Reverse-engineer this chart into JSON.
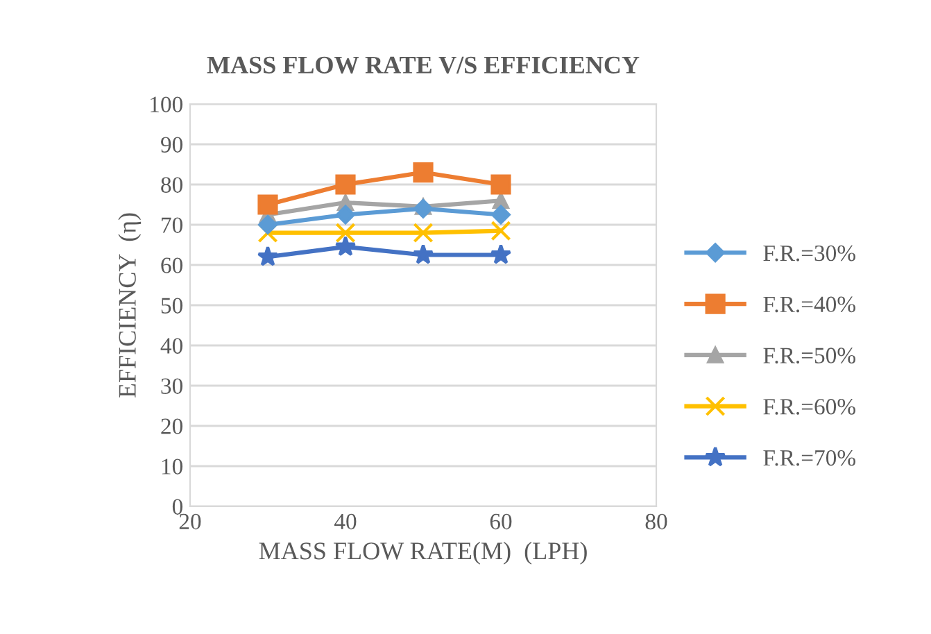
{
  "chart_data": {
    "type": "line",
    "title": "MASS FLOW RATE V/S EFFICIENCY",
    "xlabel": "MASS FLOW RATE(M)  (LPH)",
    "ylabel": "EFFICIENCY  (η)",
    "x": [
      30,
      40,
      50,
      60
    ],
    "series": [
      {
        "name": "F.R.=30%",
        "color": "#5b9bd5",
        "marker": "diamond",
        "values": [
          70,
          72.5,
          74,
          72.5
        ]
      },
      {
        "name": "F.R.=40%",
        "color": "#ed7d31",
        "marker": "square",
        "values": [
          75,
          80,
          83,
          80
        ]
      },
      {
        "name": "F.R.=50%",
        "color": "#a5a5a5",
        "marker": "triangle",
        "values": [
          72.5,
          75.5,
          74.5,
          76
        ]
      },
      {
        "name": "F.R.=60%",
        "color": "#ffc000",
        "marker": "cross",
        "values": [
          68,
          68,
          68,
          68.5
        ]
      },
      {
        "name": "F.R.=70%",
        "color": "#4472c4",
        "marker": "star",
        "values": [
          62,
          64.5,
          62.5,
          62.5
        ]
      }
    ],
    "xlim": [
      20,
      80
    ],
    "xticks": [
      20,
      40,
      60,
      80
    ],
    "ylim": [
      0,
      100
    ],
    "yticks": [
      0,
      10,
      20,
      30,
      40,
      50,
      60,
      70,
      80,
      90,
      100
    ],
    "grid": "y",
    "legend": "right"
  }
}
